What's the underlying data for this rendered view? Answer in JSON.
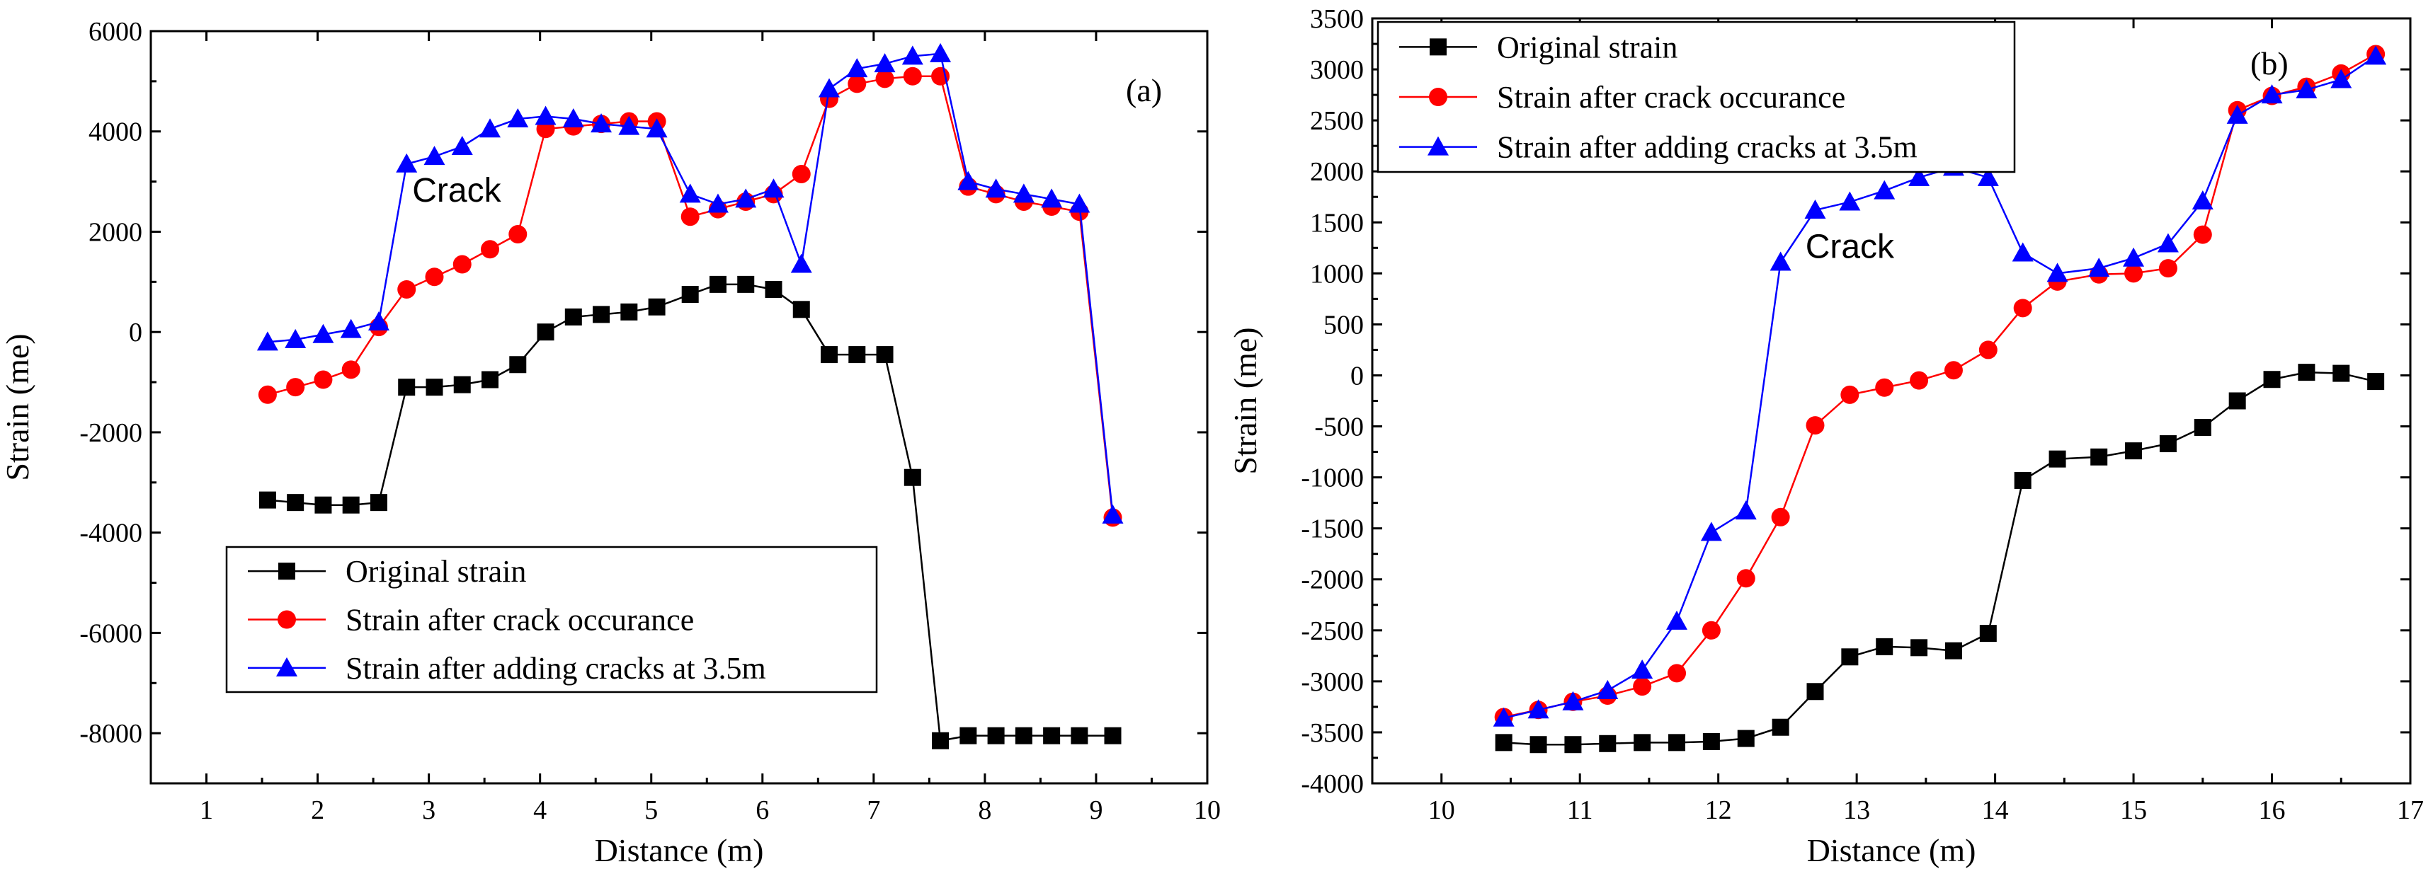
{
  "chart_data": [
    {
      "type": "line",
      "panel_label": "(a)",
      "title": "",
      "xlabel": "Distance (m)",
      "ylabel": "Strain (me)",
      "xlim": [
        0.5,
        10
      ],
      "ylim": [
        -9000,
        6000
      ],
      "xticks": [
        1,
        2,
        3,
        4,
        5,
        6,
        7,
        8,
        9,
        10
      ],
      "yticks": [
        -8000,
        -6000,
        -4000,
        -2000,
        0,
        2000,
        4000,
        6000
      ],
      "annotation": {
        "text": "Crack",
        "x": 3.25,
        "y": 2600
      },
      "legend_position": "bottom-left",
      "series": [
        {
          "name": "Original strain",
          "color": "#000000",
          "marker": "square",
          "x": [
            1.55,
            1.8,
            2.05,
            2.3,
            2.55,
            2.8,
            3.05,
            3.3,
            3.55,
            3.8,
            4.05,
            4.3,
            4.55,
            4.8,
            5.05,
            5.35,
            5.6,
            5.85,
            6.1,
            6.35,
            6.6,
            6.85,
            7.1,
            7.35,
            7.6,
            7.85,
            8.1,
            8.35,
            8.6,
            8.85,
            9.15
          ],
          "y": [
            -3350,
            -3400,
            -3450,
            -3450,
            -3400,
            -1100,
            -1100,
            -1050,
            -950,
            -650,
            0,
            300,
            350,
            400,
            500,
            750,
            950,
            950,
            850,
            450,
            -450,
            -450,
            -450,
            -2900,
            -8150,
            -8050,
            -8050,
            -8050,
            -8050,
            -8050,
            -8050
          ]
        },
        {
          "name": "Strain after crack occurance",
          "color": "#ff0000",
          "marker": "circle",
          "x": [
            1.55,
            1.8,
            2.05,
            2.3,
            2.55,
            2.8,
            3.05,
            3.3,
            3.55,
            3.8,
            4.05,
            4.3,
            4.55,
            4.8,
            5.05,
            5.35,
            5.6,
            5.85,
            6.1,
            6.35,
            6.6,
            6.85,
            7.1,
            7.35,
            7.6,
            7.85,
            8.1,
            8.35,
            8.6,
            8.85,
            9.15
          ],
          "y": [
            -1250,
            -1100,
            -950,
            -750,
            100,
            850,
            1100,
            1350,
            1650,
            1950,
            4050,
            4100,
            4150,
            4200,
            4200,
            2300,
            2450,
            2600,
            2750,
            3150,
            4650,
            4950,
            5050,
            5100,
            5100,
            2900,
            2750,
            2600,
            2500,
            2400,
            -3700
          ]
        },
        {
          "name": "Strain after adding cracks at 3.5m",
          "color": "#0000ff",
          "marker": "triangle",
          "x": [
            1.55,
            1.8,
            2.05,
            2.3,
            2.55,
            2.8,
            3.05,
            3.3,
            3.55,
            3.8,
            4.05,
            4.3,
            4.55,
            4.8,
            5.05,
            5.35,
            5.6,
            5.85,
            6.1,
            6.35,
            6.6,
            6.85,
            7.1,
            7.35,
            7.6,
            7.85,
            8.1,
            8.35,
            8.6,
            8.85,
            9.15
          ],
          "y": [
            -200,
            -150,
            -50,
            50,
            200,
            3350,
            3500,
            3700,
            4050,
            4250,
            4300,
            4250,
            4150,
            4100,
            4050,
            2750,
            2550,
            2650,
            2850,
            1350,
            4850,
            5250,
            5350,
            5500,
            5550,
            3000,
            2850,
            2750,
            2650,
            2550,
            -3650
          ]
        }
      ]
    },
    {
      "type": "line",
      "panel_label": "(b)",
      "title": "",
      "xlabel": "Distance (m)",
      "ylabel": "Strain (me)",
      "xlim": [
        9.5,
        17
      ],
      "ylim": [
        -4000,
        3500
      ],
      "xticks": [
        10,
        11,
        12,
        13,
        14,
        15,
        16,
        17
      ],
      "yticks": [
        -4000,
        -3500,
        -3000,
        -2500,
        -2000,
        -1500,
        -1000,
        -500,
        0,
        500,
        1000,
        1500,
        2000,
        2500,
        3000,
        3500
      ],
      "annotation": {
        "text": "Crack",
        "x": 12.95,
        "y": 1150
      },
      "legend_position": "top-left",
      "series": [
        {
          "name": "Original strain",
          "color": "#000000",
          "marker": "square",
          "x": [
            10.45,
            10.7,
            10.95,
            11.2,
            11.45,
            11.7,
            11.95,
            12.2,
            12.45,
            12.7,
            12.95,
            13.2,
            13.45,
            13.7,
            13.95,
            14.2,
            14.45,
            14.75,
            15.0,
            15.25,
            15.5,
            15.75,
            16.0,
            16.25,
            16.5,
            16.75
          ],
          "y": [
            -3600,
            -3620,
            -3620,
            -3610,
            -3600,
            -3600,
            -3590,
            -3560,
            -3450,
            -3100,
            -2760,
            -2660,
            -2670,
            -2700,
            -2530,
            -1030,
            -820,
            -800,
            -740,
            -670,
            -510,
            -250,
            -40,
            30,
            20,
            -60
          ]
        },
        {
          "name": "Strain after crack occurance",
          "color": "#ff0000",
          "marker": "circle",
          "x": [
            10.45,
            10.7,
            10.95,
            11.2,
            11.45,
            11.7,
            11.95,
            12.2,
            12.45,
            12.7,
            12.95,
            13.2,
            13.45,
            13.7,
            13.95,
            14.2,
            14.45,
            14.75,
            15.0,
            15.25,
            15.5,
            15.75,
            16.0,
            16.25,
            16.5,
            16.75
          ],
          "y": [
            -3350,
            -3280,
            -3200,
            -3140,
            -3050,
            -2920,
            -2500,
            -1990,
            -1390,
            -490,
            -190,
            -120,
            -50,
            50,
            250,
            660,
            920,
            990,
            1000,
            1050,
            1380,
            2600,
            2740,
            2830,
            2960,
            3150
          ]
        },
        {
          "name": "Strain after adding cracks at 3.5m",
          "color": "#0000ff",
          "marker": "triangle",
          "x": [
            10.45,
            10.7,
            10.95,
            11.2,
            11.45,
            11.7,
            11.95,
            12.2,
            12.45,
            12.7,
            12.95,
            13.2,
            13.45,
            13.7,
            13.95,
            14.2,
            14.45,
            14.75,
            15.0,
            15.25,
            15.5,
            15.75,
            16.0,
            16.25,
            16.5,
            16.75
          ],
          "y": [
            -3360,
            -3280,
            -3200,
            -3090,
            -2890,
            -2410,
            -1540,
            -1330,
            1110,
            1620,
            1700,
            1810,
            1940,
            2040,
            1940,
            1200,
            1000,
            1050,
            1150,
            1290,
            1710,
            2550,
            2750,
            2800,
            2900,
            3130
          ]
        }
      ]
    }
  ]
}
